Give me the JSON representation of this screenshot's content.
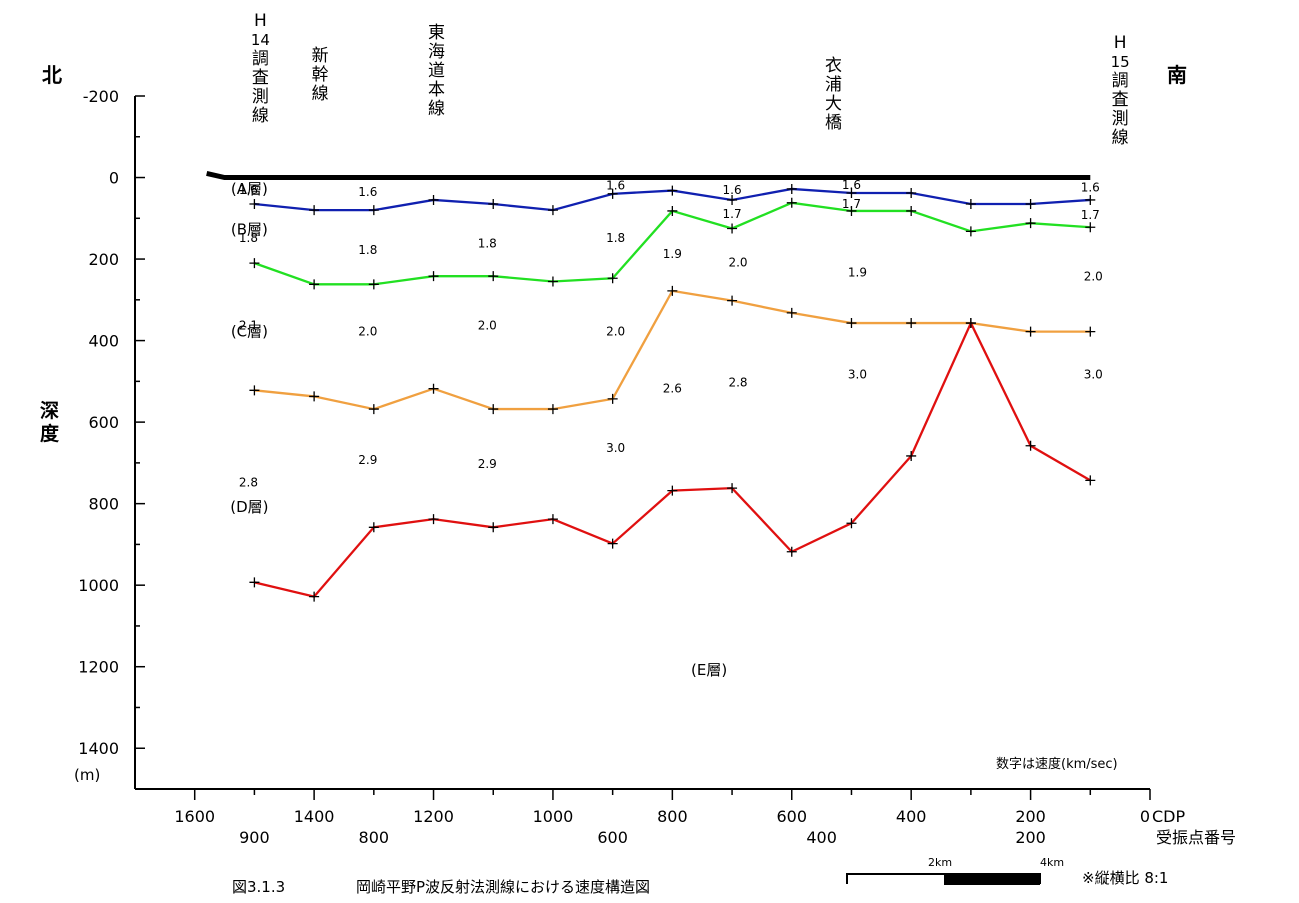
{
  "chart_data": {
    "type": "line",
    "title": "",
    "caption_number": "図3.1.3",
    "caption_text": "岡崎平野P波反射法測線における速度構造図",
    "xlabel": "CDP",
    "x2label": "受振点番号",
    "ylabel": "深度",
    "yunit": "(m)",
    "north": "北",
    "south": "南",
    "velocity_note": "数字は速度(km/sec)",
    "aspect_note": "※縦横比 8:1",
    "scale_labels": [
      "2km",
      "4km"
    ],
    "xlim": [
      1700,
      0
    ],
    "ylim": [
      -200,
      1500
    ],
    "x_ticks": [
      1600,
      1400,
      1200,
      1000,
      800,
      600,
      400,
      200,
      0
    ],
    "y_ticks": [
      -200,
      0,
      200,
      400,
      600,
      800,
      1000,
      1200,
      1400
    ],
    "receiver_ticks": [
      {
        "cdp": 1500,
        "label": "900"
      },
      {
        "cdp": 1300,
        "label": "800"
      },
      {
        "cdp": 900,
        "label": "600"
      },
      {
        "cdp": 550,
        "label": "400"
      },
      {
        "cdp": 200,
        "label": "200"
      }
    ],
    "surface": {
      "x": [
        1580,
        1550,
        100
      ],
      "y": [
        -10,
        0,
        0
      ]
    },
    "series": [
      {
        "color": "#1020b0",
        "x": [
          1500,
          1400,
          1300,
          1200,
          1100,
          1000,
          900,
          800,
          700,
          600,
          500,
          400,
          300,
          200,
          100
        ],
        "y": [
          65,
          80,
          80,
          55,
          65,
          80,
          40,
          32,
          55,
          28,
          38,
          38,
          65,
          65,
          55
        ]
      },
      {
        "color": "#22e022",
        "x": [
          1500,
          1400,
          1300,
          1200,
          1100,
          1000,
          900,
          800,
          700,
          600,
          500,
          400,
          300,
          200,
          100
        ],
        "y": [
          210,
          262,
          262,
          242,
          242,
          255,
          247,
          82,
          125,
          62,
          82,
          82,
          132,
          112,
          122
        ]
      },
      {
        "color": "#f0a040",
        "x": [
          1500,
          1400,
          1300,
          1200,
          1100,
          1000,
          900,
          800,
          700,
          600,
          500,
          400,
          300,
          200,
          100
        ],
        "y": [
          522,
          537,
          568,
          518,
          568,
          568,
          543,
          278,
          302,
          332,
          357,
          357,
          357,
          378,
          378
        ]
      },
      {
        "color": "#e01010",
        "x": [
          1500,
          1400,
          1300,
          1200,
          1100,
          1000,
          900,
          800,
          700,
          600,
          500,
          400,
          300,
          200,
          100
        ],
        "y": [
          993,
          1028,
          858,
          838,
          858,
          838,
          898,
          768,
          762,
          918,
          848,
          683,
          357,
          658,
          743
        ]
      }
    ],
    "layer_labels": [
      {
        "label": "(A層)",
        "x": 1500,
        "y": 28
      },
      {
        "label": "(B層)",
        "x": 1500,
        "y": 128
      },
      {
        "label": "(C層)",
        "x": 1500,
        "y": 378
      },
      {
        "label": "(D層)",
        "x": 1500,
        "y": 808
      },
      {
        "label": "(E層)",
        "x": 730,
        "y": 1208
      }
    ],
    "velocity_labels": [
      {
        "v": "1.6",
        "x": 1510,
        "y": 30
      },
      {
        "v": "1.6",
        "x": 1310,
        "y": 35
      },
      {
        "v": "1.6",
        "x": 895,
        "y": 20
      },
      {
        "v": "1.6",
        "x": 700,
        "y": 30
      },
      {
        "v": "1.6",
        "x": 500,
        "y": 18
      },
      {
        "v": "1.6",
        "x": 100,
        "y": 25
      },
      {
        "v": "1.7",
        "x": 700,
        "y": 90
      },
      {
        "v": "1.7",
        "x": 500,
        "y": 65
      },
      {
        "v": "1.7",
        "x": 100,
        "y": 92
      },
      {
        "v": "1.8",
        "x": 1510,
        "y": 148
      },
      {
        "v": "1.8",
        "x": 1310,
        "y": 178
      },
      {
        "v": "1.8",
        "x": 1110,
        "y": 162
      },
      {
        "v": "1.8",
        "x": 895,
        "y": 148
      },
      {
        "v": "1.9",
        "x": 800,
        "y": 188
      },
      {
        "v": "1.9",
        "x": 490,
        "y": 233
      },
      {
        "v": "2.0",
        "x": 690,
        "y": 208
      },
      {
        "v": "2.0",
        "x": 95,
        "y": 243
      },
      {
        "v": "2.1",
        "x": 1510,
        "y": 363
      },
      {
        "v": "2.0",
        "x": 1310,
        "y": 378
      },
      {
        "v": "2.0",
        "x": 1110,
        "y": 363
      },
      {
        "v": "2.0",
        "x": 895,
        "y": 378
      },
      {
        "v": "2.6",
        "x": 800,
        "y": 518
      },
      {
        "v": "2.8",
        "x": 690,
        "y": 503
      },
      {
        "v": "3.0",
        "x": 490,
        "y": 483
      },
      {
        "v": "3.0",
        "x": 95,
        "y": 483
      },
      {
        "v": "2.8",
        "x": 1510,
        "y": 748
      },
      {
        "v": "2.9",
        "x": 1310,
        "y": 693
      },
      {
        "v": "2.9",
        "x": 1110,
        "y": 703
      },
      {
        "v": "3.0",
        "x": 895,
        "y": 663
      }
    ],
    "landmarks": [
      {
        "name": "H14調査測線",
        "glyphs": [
          "H",
          "14",
          "調",
          "査",
          "測",
          "線"
        ],
        "x": 1490,
        "top": 10
      },
      {
        "name": "新幹線",
        "glyphs": [
          "新",
          "幹",
          "線"
        ],
        "x": 1390,
        "top": 45
      },
      {
        "name": "東海道本線",
        "glyphs": [
          "東",
          "海",
          "道",
          "本",
          "線"
        ],
        "x": 1195,
        "top": 22
      },
      {
        "name": "衣浦大橋",
        "glyphs": [
          "衣",
          "浦",
          "大",
          "橋"
        ],
        "x": 530,
        "top": 55
      },
      {
        "name": "H15調査測線",
        "glyphs": [
          "H",
          "15",
          "調",
          "査",
          "測",
          "線"
        ],
        "x": 50,
        "top": 32
      }
    ]
  }
}
